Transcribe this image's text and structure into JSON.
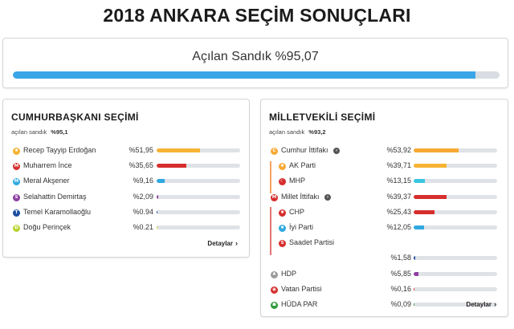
{
  "page": {
    "title": "2018 ANKARA SEÇİM SONUÇLARI"
  },
  "overall": {
    "label": "Açılan Sandık %95,07",
    "value": 95.07,
    "color": "#3aa6e8"
  },
  "presidential": {
    "title": "CUMHURBAŞKANI SEÇİMİ",
    "sub_label": "açılan sandık",
    "sub_value": "%95,1",
    "details_label": "Detaylar",
    "candidates": [
      {
        "name": "Recep Tayyip Erdoğan",
        "pct_label": "%51,95",
        "value": 51.95,
        "color": "#f7b334",
        "icon_color": "#f7b334",
        "icon_glyph": "✸"
      },
      {
        "name": "Muharrem İnce",
        "pct_label": "%35,65",
        "value": 35.65,
        "color": "#d62e2e",
        "icon_color": "#d62e2e",
        "icon_glyph": "M"
      },
      {
        "name": "Meral Akşener",
        "pct_label": "%9,16",
        "value": 9.16,
        "color": "#2fa9e0",
        "icon_color": "#2fa9e0",
        "icon_glyph": "M"
      },
      {
        "name": "Selahattin Demirtaş",
        "pct_label": "%2,09",
        "value": 2.09,
        "color": "#8e3fa0",
        "icon_color": "#8e3fa0",
        "icon_glyph": "S"
      },
      {
        "name": "Temel Karamollaoğlu",
        "pct_label": "%0.94",
        "value": 0.94,
        "color": "#1c4fa0",
        "icon_color": "#1c4fa0",
        "icon_glyph": "T"
      },
      {
        "name": "Doğu Perinçek",
        "pct_label": "%0.21",
        "value": 0.21,
        "color": "#b8d432",
        "icon_color": "#b8d432",
        "icon_glyph": "D"
      }
    ]
  },
  "parliament": {
    "title": "MİLLETVEKİLİ SEÇİMİ",
    "sub_label": "açılan sandık",
    "sub_value": "%93,2",
    "details_label": "Detaylar",
    "parties": [
      {
        "name": "Cumhur İttifakı",
        "pct_label": "%53,92",
        "value": 53.92,
        "color": "#f7a934",
        "icon_color": "#f7a934",
        "icon_glyph": "C",
        "sub": false,
        "info": true
      },
      {
        "name": "AK Parti",
        "pct_label": "%39,71",
        "value": 39.71,
        "color": "#f7b334",
        "icon_color": "#f7a934",
        "icon_glyph": "✸",
        "sub": true,
        "info": false
      },
      {
        "name": "MHP",
        "pct_label": "%13,15",
        "value": 13.15,
        "color": "#3cc6e0",
        "icon_color": "#d62e2e",
        "icon_glyph": "☾",
        "sub": true,
        "info": false
      },
      {
        "name": "Millet İttifakı",
        "pct_label": "%39,37",
        "value": 39.37,
        "color": "#d62e2e",
        "icon_color": "#d62e2e",
        "icon_glyph": "M",
        "sub": false,
        "info": true
      },
      {
        "name": "CHP",
        "pct_label": "%25,43",
        "value": 25.43,
        "color": "#d62e2e",
        "icon_color": "#d62e2e",
        "icon_glyph": "✸",
        "sub": true,
        "info": false
      },
      {
        "name": "İyi Parti",
        "pct_label": "%12,05",
        "value": 12.05,
        "color": "#2fa9e0",
        "icon_color": "#2fa9e0",
        "icon_glyph": "✸",
        "sub": true,
        "info": false
      },
      {
        "name": "Saadet Partisi",
        "pct_label": "",
        "value": 0,
        "color": "#d62e2e",
        "icon_color": "#d62e2e",
        "icon_glyph": "S",
        "sub": true,
        "info": false
      },
      {
        "name": "",
        "pct_label": "%1,58",
        "value": 1.58,
        "color": "#1c4fa0",
        "icon_color": "#ffffff",
        "icon_glyph": "",
        "sub": true,
        "info": false,
        "spacer": true
      },
      {
        "name": "HDP",
        "pct_label": "%5,85",
        "value": 5.85,
        "color": "#8e3fa0",
        "icon_color": "#9a9a9a",
        "icon_glyph": "♣",
        "sub": false,
        "info": false
      },
      {
        "name": "Vatan Partisi",
        "pct_label": "%0,16",
        "value": 0.16,
        "color": "#d62e2e",
        "icon_color": "#d62e2e",
        "icon_glyph": "◉",
        "sub": false,
        "info": false
      },
      {
        "name": "HÜDA PAR",
        "pct_label": "%0,09",
        "value": 0.09,
        "color": "#2c9c3e",
        "icon_color": "#2c9c3e",
        "icon_glyph": "☗",
        "sub": false,
        "info": false
      }
    ]
  }
}
